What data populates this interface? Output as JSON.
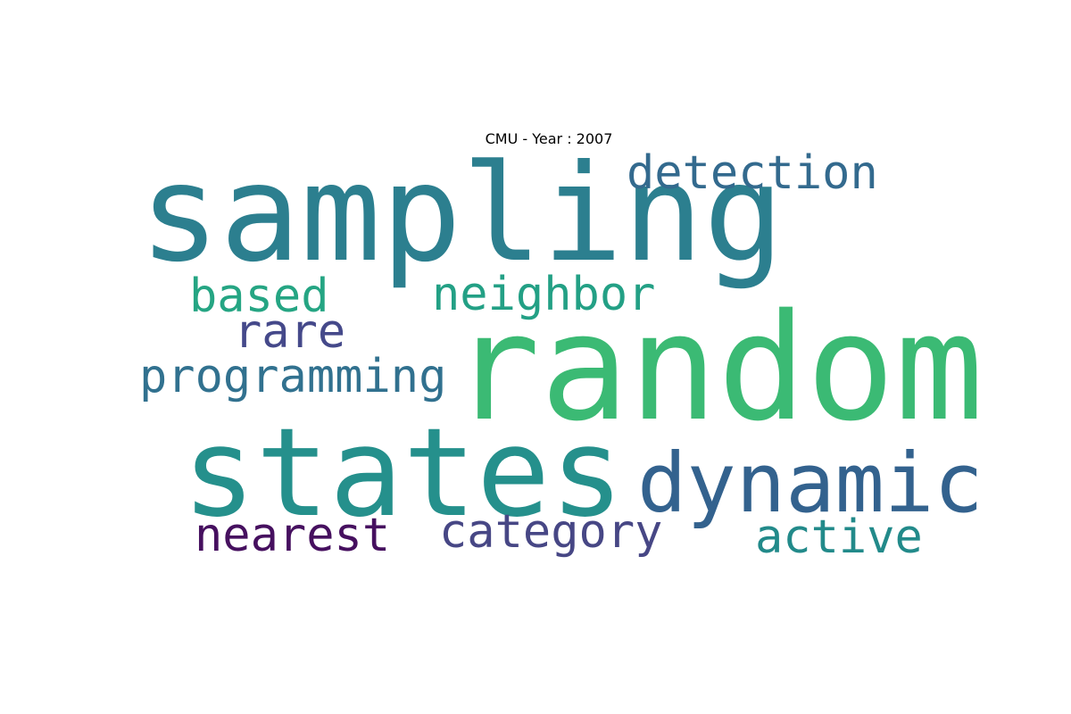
{
  "title": "CMU - Year : 2007",
  "words": {
    "sampling": {
      "text": "sampling",
      "color": "#2c7f8f"
    },
    "random": {
      "text": "random",
      "color": "#3bba74"
    },
    "states": {
      "text": "states",
      "color": "#25908c"
    },
    "dynamic": {
      "text": "dynamic",
      "color": "#33628e"
    },
    "detection": {
      "text": "detection",
      "color": "#336a8e"
    },
    "neighbor": {
      "text": "neighbor",
      "color": "#23a085"
    },
    "based": {
      "text": "based",
      "color": "#25a583"
    },
    "rare": {
      "text": "rare",
      "color": "#45498a"
    },
    "programming": {
      "text": "programming",
      "color": "#31718f"
    },
    "nearest": {
      "text": "nearest",
      "color": "#46105f"
    },
    "category": {
      "text": "category",
      "color": "#474785"
    },
    "active": {
      "text": "active",
      "color": "#228a8a"
    }
  }
}
